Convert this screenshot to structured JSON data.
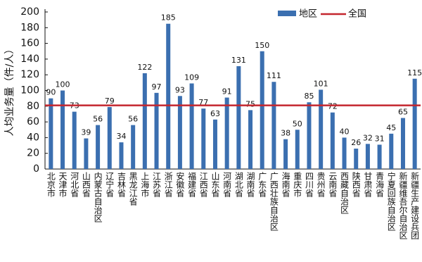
{
  "chart_data": {
    "type": "bar",
    "y_label": "人均业务量（件/人）",
    "categories": [
      "北京市",
      "天津市",
      "河北省",
      "山西省",
      "内蒙古自治区",
      "辽宁省",
      "吉林省",
      "黑龙江省",
      "上海市",
      "江苏省",
      "浙江省",
      "安徽省",
      "福建省",
      "江西省",
      "山东省",
      "河南省",
      "湖北省",
      "湖南省",
      "广东省",
      "广西壮族自治区",
      "海南省",
      "重庆市",
      "四川省",
      "贵州省",
      "云南省",
      "西藏自治区",
      "陕西省",
      "甘肃省",
      "青海省",
      "宁夏回族自治区",
      "新疆维吾尔自治区",
      "新疆生产建设兵团"
    ],
    "series": [
      {
        "name": "地区",
        "color": "#3b6fb0",
        "values": [
          90,
          100,
          73,
          39,
          56,
          79,
          34,
          56,
          122,
          97,
          185,
          93,
          109,
          77,
          63,
          91,
          131,
          75,
          150,
          111,
          38,
          50,
          85,
          101,
          72,
          40,
          26,
          32,
          31,
          45,
          65,
          115
        ]
      }
    ],
    "reference_line": {
      "name": "全国",
      "value": 81,
      "color": "#c4262e"
    },
    "ylim": [
      0,
      200
    ],
    "yticks": [
      0,
      20,
      40,
      60,
      80,
      100,
      120,
      140,
      160,
      180,
      200
    ],
    "legend": "top-right"
  }
}
